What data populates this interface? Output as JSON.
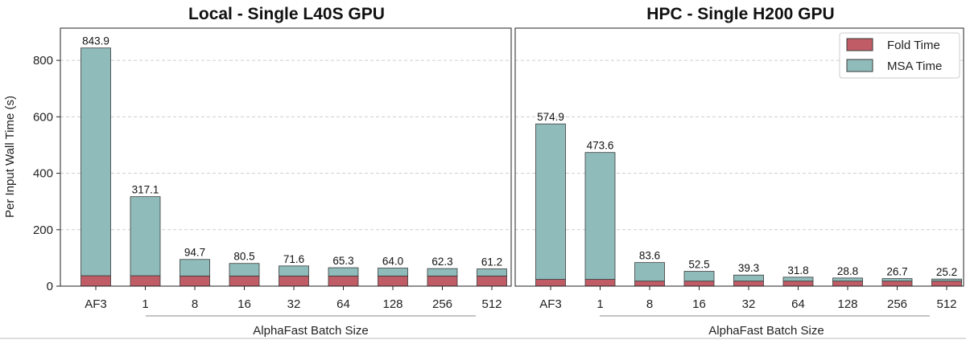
{
  "colors": {
    "fold": "#c05c66",
    "msa": "#8fbcbb",
    "edge": "#3a3a3a",
    "grid": "#cfcfcf"
  },
  "legend": {
    "fold_label": "Fold Time",
    "msa_label": "MSA Time",
    "placement": "top-right of right panel"
  },
  "chart_data": [
    {
      "type": "bar",
      "stacked": true,
      "title": "Local - Single L40S GPU",
      "xlabel": "AlphaFast Batch Size",
      "ylabel": "Per Input Wall Time (s)",
      "ylim": [
        0,
        900
      ],
      "yticks": [
        "0",
        "200",
        "400",
        "600",
        "800"
      ],
      "grid": true,
      "categories": [
        "AF3",
        "1",
        "8",
        "16",
        "32",
        "64",
        "128",
        "256",
        "512"
      ],
      "series": [
        {
          "name": "Fold Time",
          "values": [
            37,
            37,
            36,
            36,
            36,
            36,
            36,
            36,
            36
          ]
        },
        {
          "name": "MSA Time",
          "values": [
            806.9,
            280.1,
            58.7,
            44.5,
            35.6,
            29.3,
            28.0,
            26.3,
            25.2
          ]
        }
      ],
      "totals": [
        "843.9",
        "317.1",
        "94.7",
        "80.5",
        "71.6",
        "65.3",
        "64.0",
        "62.3",
        "61.2"
      ]
    },
    {
      "type": "bar",
      "stacked": true,
      "title": "HPC - Single H200 GPU",
      "xlabel": "AlphaFast Batch Size",
      "ylabel": "",
      "ylim": [
        0,
        900
      ],
      "yticks": [],
      "grid": true,
      "categories": [
        "AF3",
        "1",
        "8",
        "16",
        "32",
        "64",
        "128",
        "256",
        "512"
      ],
      "series": [
        {
          "name": "Fold Time",
          "values": [
            24,
            24,
            18,
            18,
            18,
            18,
            18,
            18,
            18
          ]
        },
        {
          "name": "MSA Time",
          "values": [
            550.9,
            449.6,
            65.6,
            34.5,
            21.3,
            13.8,
            10.8,
            8.7,
            7.2
          ]
        }
      ],
      "totals": [
        "574.9",
        "473.6",
        "83.6",
        "52.5",
        "39.3",
        "31.8",
        "28.8",
        "26.7",
        "25.2"
      ]
    }
  ]
}
